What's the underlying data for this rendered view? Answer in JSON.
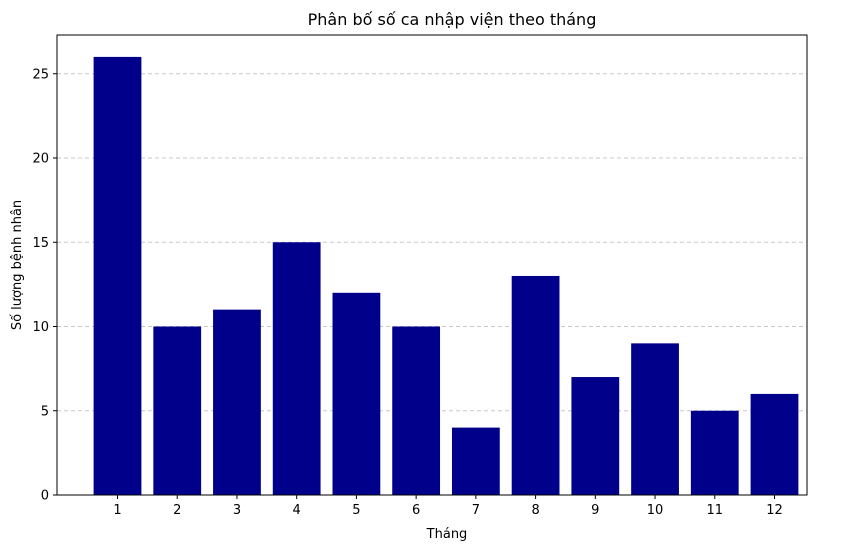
{
  "chart_data": {
    "type": "bar",
    "title": "Phân bố số ca nhập viện theo tháng",
    "xlabel": "Tháng",
    "ylabel": "Số lượng bệnh nhân",
    "categories": [
      "1",
      "2",
      "3",
      "4",
      "5",
      "6",
      "7",
      "8",
      "9",
      "10",
      "11",
      "12"
    ],
    "values": [
      26,
      10,
      11,
      15,
      12,
      10,
      4,
      13,
      7,
      9,
      5,
      6
    ],
    "ylim": [
      0,
      27.3
    ],
    "yticks": [
      0,
      5,
      10,
      15,
      20,
      25
    ],
    "grid": "y, dashed",
    "bar_color": "#00008b",
    "grid_color": "#c8c8c8"
  }
}
